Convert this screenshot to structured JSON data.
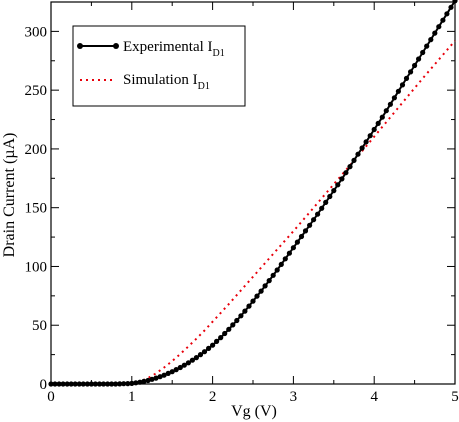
{
  "chart_data": {
    "type": "line",
    "xlabel": "Vg (V)",
    "ylabel": "Drain Current (µA)",
    "xlim": [
      0,
      5
    ],
    "ylim": [
      0,
      325
    ],
    "x_ticks": [
      "0",
      "1",
      "2",
      "3",
      "4",
      "5"
    ],
    "y_ticks": [
      "0",
      "50",
      "100",
      "150",
      "200",
      "250",
      "300"
    ],
    "legend_position": "top-left",
    "grid": false,
    "series": [
      {
        "name": "Experimental I",
        "name_sub": "D1",
        "style": "solid line with circle markers",
        "color": "#000000",
        "x": [
          0,
          0.2,
          0.4,
          0.6,
          0.8,
          1.0,
          1.1,
          1.2,
          1.3,
          1.4,
          1.5,
          1.6,
          1.7,
          1.8,
          1.9,
          2.0,
          2.1,
          2.2,
          2.3,
          2.4,
          2.5,
          2.6,
          2.7,
          2.8,
          2.9,
          3.0,
          3.1,
          3.2,
          3.3,
          3.4,
          3.5,
          3.6,
          3.7,
          3.8,
          3.9,
          4.0,
          4.1,
          4.2,
          4.3,
          4.4,
          4.5,
          4.6,
          4.7,
          4.8,
          4.9,
          5.0
        ],
        "y": [
          0,
          0,
          0,
          0,
          0,
          0.5,
          1.5,
          3,
          5,
          7.5,
          10.5,
          14,
          18,
          22.5,
          27.5,
          33,
          39.5,
          46.5,
          54,
          62,
          70.5,
          79,
          88,
          97,
          106.5,
          116,
          125.5,
          135,
          144.5,
          154.5,
          164.5,
          174.5,
          185,
          195.5,
          206,
          216.5,
          227,
          238,
          249,
          260,
          271,
          282,
          293,
          304,
          315,
          326
        ]
      },
      {
        "name": "Simulation I",
        "name_sub": "D1",
        "style": "dotted line",
        "color": "#e8000b",
        "x": [
          1.0,
          1.1,
          1.2,
          1.3,
          1.4,
          1.5,
          1.6,
          1.7,
          1.8,
          1.9,
          2.0,
          2.2,
          2.4,
          2.6,
          2.8,
          3.0,
          3.2,
          3.4,
          3.6,
          3.8,
          4.0,
          4.2,
          4.4,
          4.6,
          4.8,
          5.0
        ],
        "y": [
          0,
          2,
          5,
          9,
          14,
          19.5,
          25.5,
          32,
          38.5,
          45.5,
          53,
          68,
          83.5,
          99,
          114.5,
          130,
          146,
          162,
          178,
          194,
          210.5,
          227,
          243.5,
          260,
          276,
          292
        ]
      }
    ]
  }
}
